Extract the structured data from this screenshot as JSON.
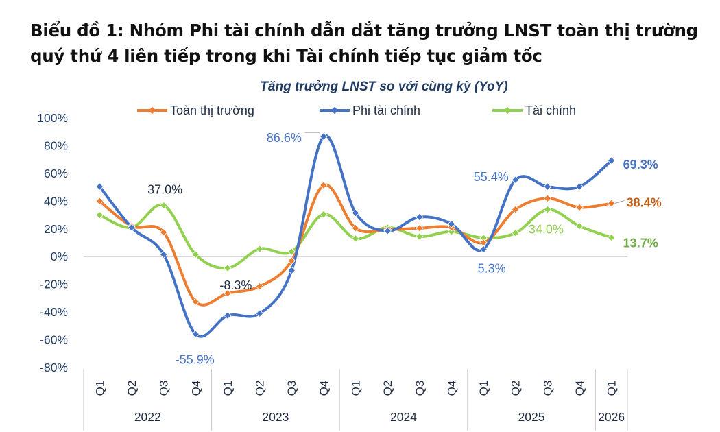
{
  "heading": {
    "line1": "Biểu đồ 1: Nhóm Phi tài chính dẫn dắt tăng trưởng LNST toàn thị trường",
    "line2": "quý thứ 4 liên tiếp trong khi Tài chính tiếp tục giảm tốc"
  },
  "chart_data": {
    "type": "line",
    "subtitle": "Tăng trưởng LNST so với cùng kỳ (YoY)",
    "y_unit": "%",
    "ylim": [
      -80,
      100
    ],
    "yticks": [
      -80,
      -60,
      -40,
      -20,
      0,
      20,
      40,
      60,
      80,
      100
    ],
    "ytick_labels": [
      "-80%",
      "-60%",
      "-40%",
      "-20%",
      "0%",
      "20%",
      "40%",
      "60%",
      "80%",
      "100%"
    ],
    "categories": [
      "Q1",
      "Q2",
      "Q3",
      "Q4",
      "Q1",
      "Q2",
      "Q3",
      "Q4",
      "Q1",
      "Q2",
      "Q3",
      "Q4",
      "Q1",
      "Q2",
      "Q3",
      "Q4",
      "Q1"
    ],
    "year_groups": [
      {
        "label": "2022",
        "count": 4
      },
      {
        "label": "2023",
        "count": 4
      },
      {
        "label": "2024",
        "count": 4
      },
      {
        "label": "2025",
        "count": 4
      },
      {
        "label": "2026",
        "count": 1
      }
    ],
    "legend_position": "top",
    "grid": false,
    "series": [
      {
        "name": "Toàn thị trường",
        "color": "#ed7d31",
        "values": [
          40.0,
          22.0,
          17.5,
          -32.5,
          -26.5,
          -21.5,
          -3.0,
          51.5,
          20.5,
          19.5,
          20.5,
          21.0,
          10.0,
          34.0,
          42.0,
          35.5,
          38.4
        ]
      },
      {
        "name": "Phi tài chính",
        "color": "#4472c4",
        "values": [
          50.5,
          21.0,
          1.5,
          -55.9,
          -42.5,
          -41.0,
          -10.0,
          86.6,
          31.5,
          18.5,
          28.5,
          23.5,
          5.3,
          55.4,
          50.5,
          50.5,
          69.3
        ]
      },
      {
        "name": "Tài chính",
        "color": "#92d050",
        "values": [
          30.0,
          21.0,
          37.0,
          1.5,
          -8.3,
          5.5,
          3.5,
          30.5,
          13.0,
          21.0,
          14.5,
          18.0,
          13.5,
          17.0,
          34.0,
          22.0,
          13.7
        ]
      }
    ],
    "annotations": [
      {
        "text": "37.0%",
        "series": 2,
        "index": 2,
        "color": "#1f2d45",
        "bold": false
      },
      {
        "text": "-8.3%",
        "series": 2,
        "index": 4,
        "color": "#1f2d45",
        "bold": false
      },
      {
        "text": "-55.9%",
        "series": 1,
        "index": 3,
        "color": "#4472c4",
        "bold": false
      },
      {
        "text": "86.6%",
        "series": 1,
        "index": 7,
        "color": "#4472c4",
        "bold": false
      },
      {
        "text": "55.4%",
        "series": 1,
        "index": 13,
        "color": "#4472c4",
        "bold": false
      },
      {
        "text": "5.3%",
        "series": 1,
        "index": 12,
        "color": "#4472c4",
        "bold": false
      },
      {
        "text": "34.0%",
        "series": 2,
        "index": 14,
        "color": "#92d050",
        "bold": false
      },
      {
        "text": "69.3%",
        "series": 1,
        "index": 16,
        "color": "#4472c4",
        "bold": true
      },
      {
        "text": "38.4%",
        "series": 0,
        "index": 16,
        "color": "#c55a11",
        "bold": true
      },
      {
        "text": "13.7%",
        "series": 2,
        "index": 16,
        "color": "#70ad47",
        "bold": true
      }
    ]
  }
}
